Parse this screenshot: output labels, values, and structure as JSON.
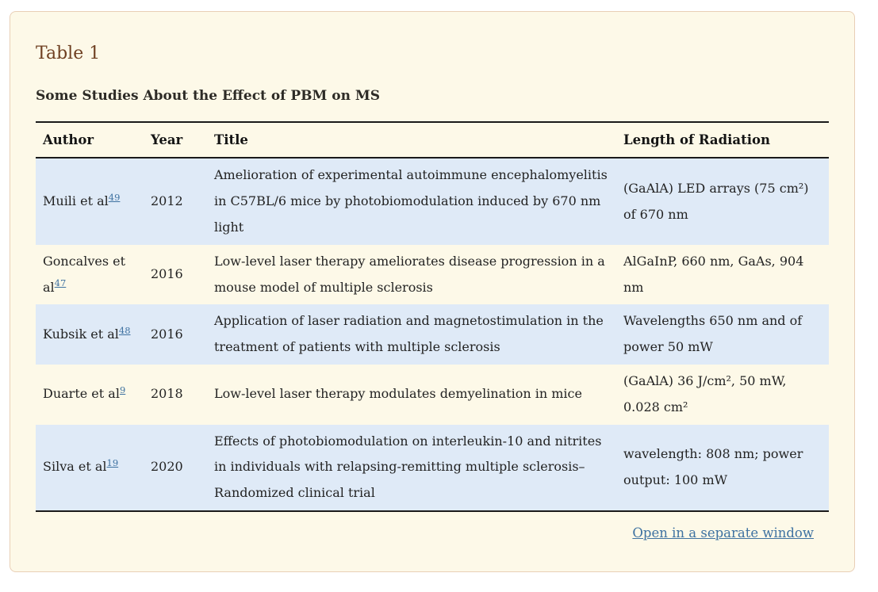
{
  "page": {
    "table_label": "Table 1",
    "caption": "Some Studies About the Effect of PBM on MS",
    "open_link_label": "Open in a separate window"
  },
  "table": {
    "headers": [
      "Author",
      "Year",
      "Title",
      "Length of Radiation"
    ],
    "rows": [
      {
        "author": "Muili et al",
        "ref": "49",
        "year": "2012",
        "title": "Amelioration of experimental autoimmune encephalomyelitis in C57BL/6 mice by photobiomodulation induced by 670 nm light",
        "radiation": "(GaAlA) LED arrays (75 cm²) of 670 nm"
      },
      {
        "author": "Goncalves et al",
        "ref": "47",
        "year": "2016",
        "title": "Low-level laser therapy ameliorates disease progression in a mouse model of multiple sclerosis",
        "radiation": "AlGaInP, 660 nm, GaAs, 904 nm"
      },
      {
        "author": "Kubsik et al",
        "ref": "48",
        "year": "2016",
        "title": "Application of laser radiation and magnetostimulation in the treatment of patients with multiple sclerosis",
        "radiation": "Wavelengths 650 nm and of power 50 mW"
      },
      {
        "author": "Duarte et al",
        "ref": "9",
        "year": "2018",
        "title": "Low-level laser therapy modulates demyelination in mice",
        "radiation": "(GaAlA) 36 J/cm², 50 mW, 0.028 cm²"
      },
      {
        "author": "Silva et al",
        "ref": "19",
        "year": "2020",
        "title": "Effects of photobiomodulation on interleukin-10 and nitrites in individuals with relapsing-remitting multiple sclerosis–Randomized clinical trial",
        "radiation": "wavelength: 808 nm; power output: 100 mW"
      }
    ]
  },
  "colors": {
    "card_background": "#fdf9e8",
    "card_border": "#e9cfb6",
    "row_highlight": "#dfeaf7",
    "rule_dark": "#1a1a1a",
    "link_blue": "#3f72a1",
    "title_brown": "#6f4022"
  }
}
